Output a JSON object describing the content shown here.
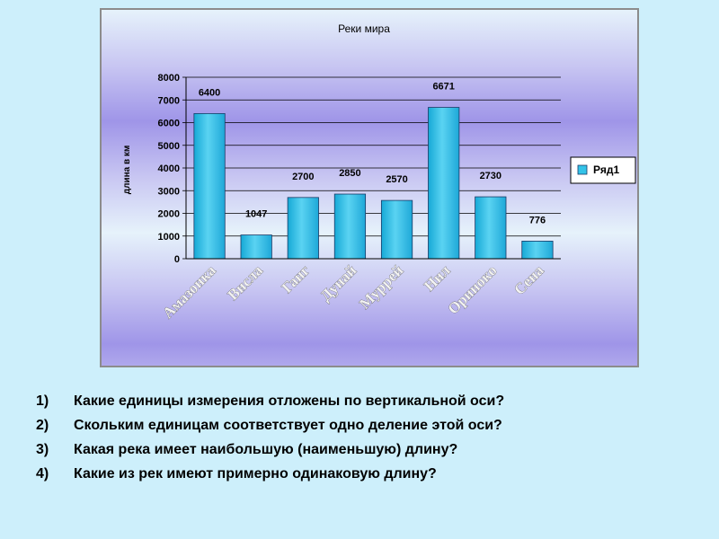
{
  "chart_data": {
    "type": "bar",
    "title": "Реки мира",
    "ylabel": "длина в км",
    "xlabel": "",
    "categories": [
      "Амазонка",
      "Висла",
      "Ганг",
      "Дунай",
      "Муррей",
      "Нил",
      "Ориноко",
      "Сена"
    ],
    "series": [
      {
        "name": "Ряд1",
        "values": [
          6400,
          1047,
          2700,
          2850,
          2570,
          6671,
          2730,
          776
        ]
      }
    ],
    "data_labels": [
      "6400",
      "1047",
      "2700",
      "2850",
      "2570",
      "6671",
      "2730",
      "776"
    ],
    "ylim": [
      0,
      8000
    ],
    "yticks": [
      "0",
      "1000",
      "2000",
      "3000",
      "4000",
      "5000",
      "6000",
      "7000",
      "8000"
    ],
    "grid": true,
    "legend_position": "right",
    "colors": {
      "bar": "#33c3e8",
      "bar_edge": "#1a3a66",
      "grid": "#000000"
    }
  },
  "questions": [
    {
      "num": "1)",
      "text": "Какие единицы измерения отложены по вертикальной оси?"
    },
    {
      "num": "2)",
      "text": "Скольким единицам соответствует одно деление этой оси?"
    },
    {
      "num": "3)",
      "text": "Какая река имеет наибольшую (наименьшую) длину?"
    },
    {
      "num": "4)",
      "text": "Какие из рек имеют примерно одинаковую длину?"
    }
  ]
}
